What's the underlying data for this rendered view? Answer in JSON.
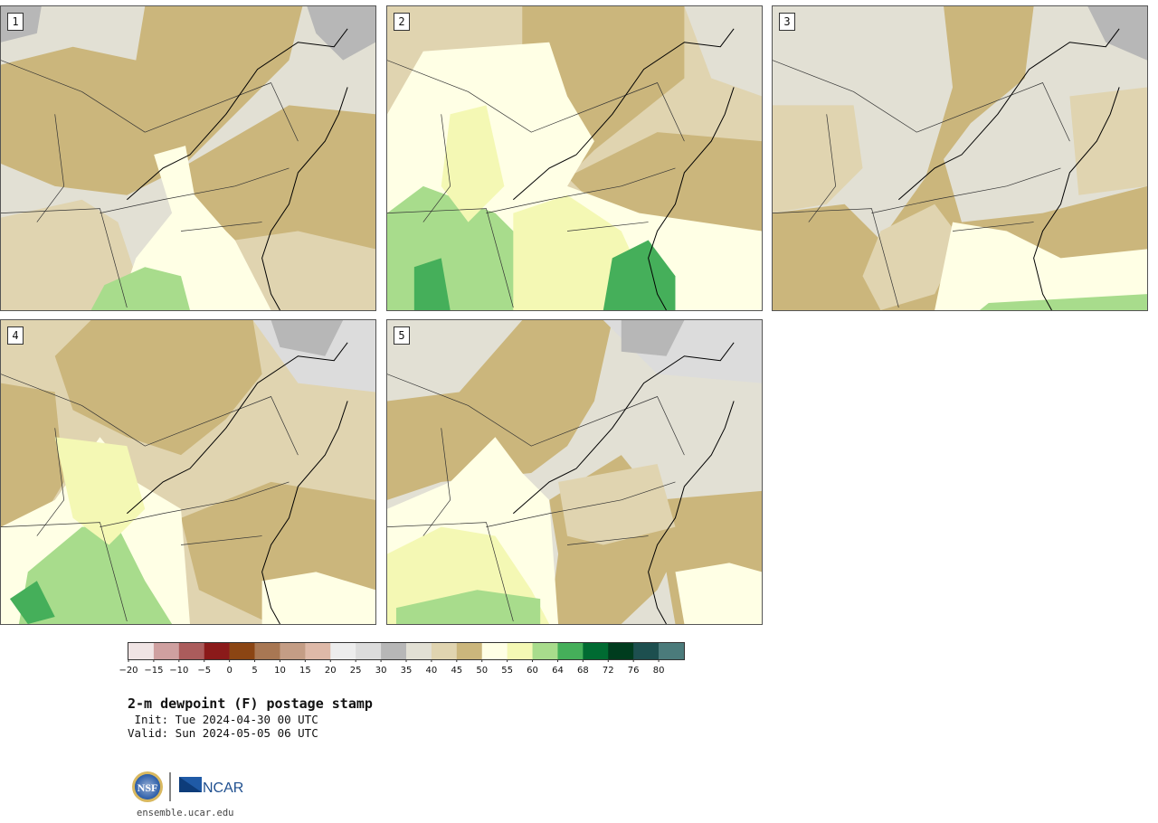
{
  "panels": [
    {
      "label": "1"
    },
    {
      "label": "2"
    },
    {
      "label": "3"
    },
    {
      "label": "4"
    },
    {
      "label": "5"
    }
  ],
  "colorbar": {
    "colors": [
      "#f0e4e4",
      "#cfa0a0",
      "#ab5c5c",
      "#8b1a1a",
      "#8b4513",
      "#a87753",
      "#c49d85",
      "#deb9a8",
      "#ededed",
      "#dcdcdc",
      "#b7b7b7",
      "#e2e0d4",
      "#e0d4b0",
      "#cbb67c",
      "#ffffe5",
      "#f4f8b4",
      "#a8dc8c",
      "#45af5a",
      "#006b32",
      "#003c1e",
      "#1d4f4f",
      "#4b7b7b"
    ],
    "tick_labels": [
      "−20",
      "−15",
      "−10",
      "−5",
      "0",
      "5",
      "10",
      "15",
      "20",
      "25",
      "30",
      "35",
      "40",
      "45",
      "50",
      "55",
      "60",
      "64",
      "68",
      "72",
      "76",
      "80"
    ]
  },
  "title": {
    "main": "2-m dewpoint (F) postage stamp",
    "init": " Init: Tue 2024-04-30 00 UTC",
    "valid": "Valid: Sun 2024-05-05 06 UTC"
  },
  "logos": {
    "nsf": "NSF",
    "ncar": "NCAR"
  },
  "site": "ensemble.ucar.edu"
}
